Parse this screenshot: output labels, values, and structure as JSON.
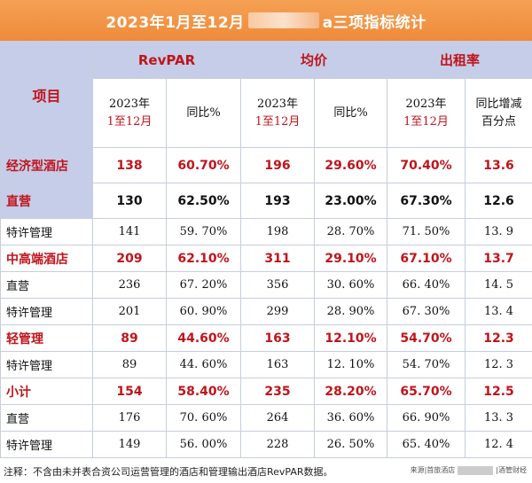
{
  "title": {
    "prefix": "2023年1月至12月",
    "suffix": "a三项指标统计"
  },
  "headers": {
    "item": "项目",
    "groups": [
      "RevPAR",
      "均价",
      "出租率"
    ],
    "sub": {
      "period_line1": "2023年",
      "period_line2": "1至12月",
      "yoy": "同比%",
      "yoy_points_line1": "同比增减",
      "yoy_points_line2": "百分点"
    }
  },
  "rows": [
    {
      "name": "经济型酒店",
      "style": "hl1",
      "values": [
        "138",
        "60.70%",
        "196",
        "29.60%",
        "70.40%",
        "13.6"
      ]
    },
    {
      "name": "直营",
      "style": "hl2",
      "values": [
        "130",
        "62.50%",
        "193",
        "23.00%",
        "67.30%",
        "12.6"
      ]
    },
    {
      "name": "特许管理",
      "style": "norm",
      "values": [
        "141",
        "59. 70%",
        "198",
        "28. 70%",
        "71. 50%",
        "13. 9"
      ]
    },
    {
      "name": "中高端酒店",
      "style": "bold",
      "values": [
        "209",
        "62.10%",
        "311",
        "29.10%",
        "67.10%",
        "13.7"
      ]
    },
    {
      "name": "直营",
      "style": "norm",
      "values": [
        "236",
        "67. 20%",
        "356",
        "30. 60%",
        "66. 40%",
        "14. 5"
      ]
    },
    {
      "name": "特许管理",
      "style": "norm",
      "values": [
        "201",
        "60. 90%",
        "299",
        "28. 90%",
        "67. 30%",
        "13. 4"
      ]
    },
    {
      "name": "轻管理",
      "style": "bold",
      "values": [
        "89",
        "44.60%",
        "163",
        "12.10%",
        "54.70%",
        "12.3"
      ]
    },
    {
      "name": "特许管理",
      "style": "norm",
      "values": [
        "89",
        "44. 60%",
        "163",
        "12. 10%",
        "54. 70%",
        "12. 3"
      ]
    },
    {
      "name": "小计",
      "style": "bold",
      "values": [
        "154",
        "58.40%",
        "235",
        "28.20%",
        "65.70%",
        "12.5"
      ]
    },
    {
      "name": "直营",
      "style": "norm",
      "values": [
        "176",
        "70. 60%",
        "264",
        "36. 60%",
        "66. 90%",
        "13. 3"
      ]
    },
    {
      "name": "特许管理",
      "style": "norm",
      "values": [
        "149",
        "56. 00%",
        "228",
        "26. 50%",
        "65. 40%",
        "12. 4"
      ]
    }
  ],
  "footer": {
    "note": "注释：不含由未并表合资公司运营管理的酒店和管理输出酒店RevPAR数据。",
    "source_a": "来源|首旅酒店",
    "source_b": "|酒管财经"
  },
  "colors": {
    "title_bg": "#ef8a3a",
    "header_bg": "#c5cde8",
    "accent_red": "#c0141b"
  }
}
